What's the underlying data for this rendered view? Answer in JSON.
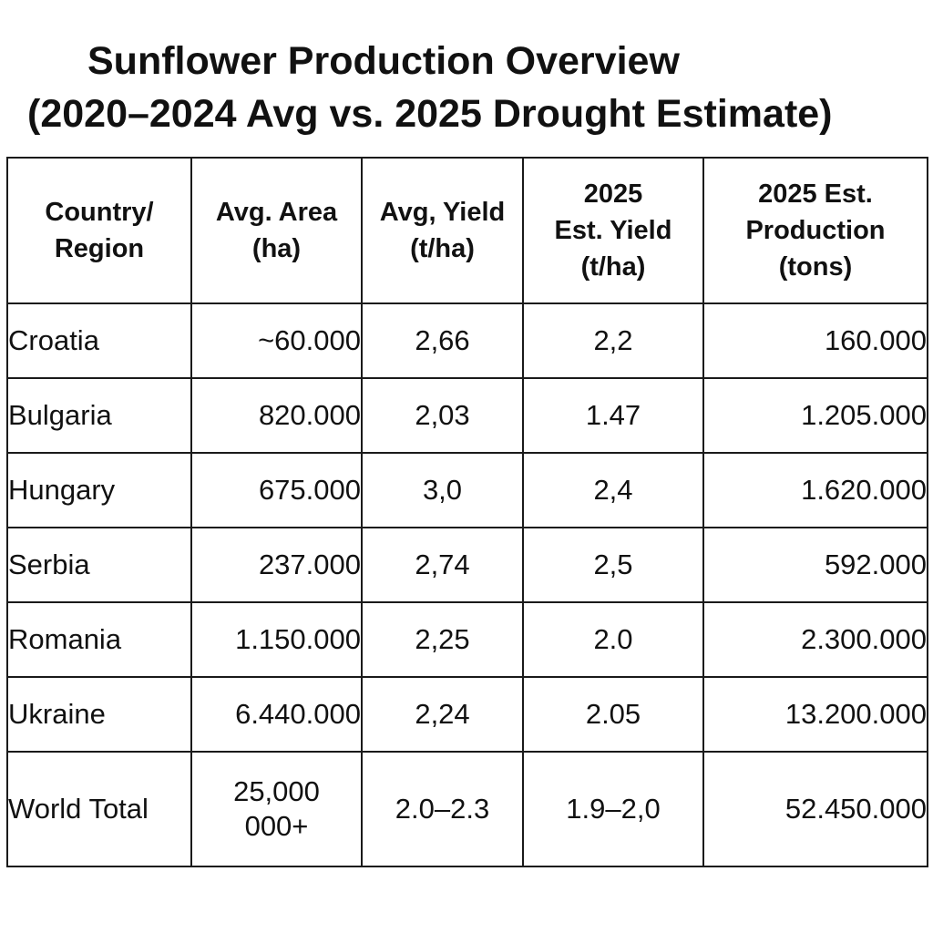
{
  "title": {
    "line1": "Sunflower Production Overview",
    "line2": "(2020–2024 Avg vs. 2025 Drought Estimate)"
  },
  "table": {
    "headers": [
      [
        "Country/",
        "Region"
      ],
      [
        "Avg. Area",
        "(ha)"
      ],
      [
        "Avg, Yield",
        "(t/ha)"
      ],
      [
        "2025",
        "Est. Yield",
        "(t/ha)"
      ],
      [
        "2025 Est.",
        "Production",
        "(tons)"
      ]
    ],
    "rows": [
      {
        "country": "Croatia",
        "area": "~60.000",
        "avg_yield": "2,66",
        "est_yield": "2,2",
        "production": "160.000"
      },
      {
        "country": "Bulgaria",
        "area": "820.000",
        "avg_yield": "2,03",
        "est_yield": "1.47",
        "production": "1.205.000"
      },
      {
        "country": "Hungary",
        "area": "675.000",
        "avg_yield": "3,0",
        "est_yield": "2,4",
        "production": "1.620.000"
      },
      {
        "country": "Serbia",
        "area": "237.000",
        "avg_yield": "2,74",
        "est_yield": "2,5",
        "production": "592.000"
      },
      {
        "country": "Romania",
        "area": "1.150.000",
        "avg_yield": "2,25",
        "est_yield": "2.0",
        "production": "2.300.000"
      },
      {
        "country": "Ukraine",
        "area": "6.440.000",
        "avg_yield": "2,24",
        "est_yield": "2.05",
        "production": "13.200.000"
      }
    ],
    "total": {
      "country": "World Total",
      "area_line1": "25,000",
      "area_line2": "000+",
      "avg_yield": "2.0–2.3",
      "est_yield": "1.9–2,0",
      "production": "52.450.000"
    }
  }
}
